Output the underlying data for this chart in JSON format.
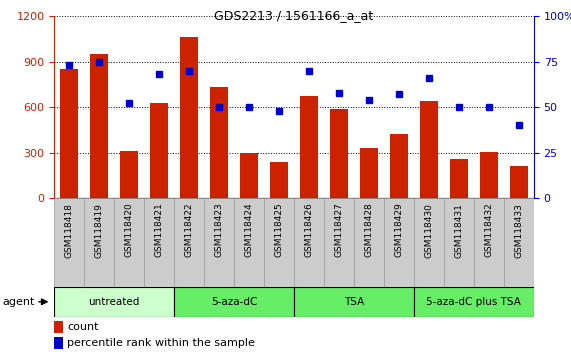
{
  "title": "GDS2213 / 1561166_a_at",
  "samples": [
    "GSM118418",
    "GSM118419",
    "GSM118420",
    "GSM118421",
    "GSM118422",
    "GSM118423",
    "GSM118424",
    "GSM118425",
    "GSM118426",
    "GSM118427",
    "GSM118428",
    "GSM118429",
    "GSM118430",
    "GSM118431",
    "GSM118432",
    "GSM118433"
  ],
  "counts": [
    850,
    950,
    310,
    630,
    1060,
    730,
    295,
    240,
    670,
    585,
    330,
    420,
    640,
    260,
    305,
    210
  ],
  "percentiles": [
    73,
    75,
    52,
    68,
    70,
    50,
    50,
    48,
    70,
    58,
    54,
    57,
    66,
    50,
    50,
    40
  ],
  "bar_color": "#CC2200",
  "dot_color": "#0000CC",
  "ylim_left": [
    0,
    1200
  ],
  "ylim_right": [
    0,
    100
  ],
  "yticks_left": [
    0,
    300,
    600,
    900,
    1200
  ],
  "yticks_right": [
    0,
    25,
    50,
    75,
    100
  ],
  "group_definitions": [
    {
      "label": "untreated",
      "count": 4,
      "color": "#CCFFCC"
    },
    {
      "label": "5-aza-dC",
      "count": 4,
      "color": "#66EE66"
    },
    {
      "label": "TSA",
      "count": 4,
      "color": "#66EE66"
    },
    {
      "label": "5-aza-dC plus TSA",
      "count": 4,
      "color": "#66EE66"
    }
  ],
  "agent_label": "agent",
  "legend_count": "count",
  "legend_percentile": "percentile rank within the sample",
  "bar_color_left": "#CC2200",
  "tick_label_color_right": "#0000CC",
  "xticklabel_bg": "#CCCCCC",
  "grid_linestyle": "dotted"
}
